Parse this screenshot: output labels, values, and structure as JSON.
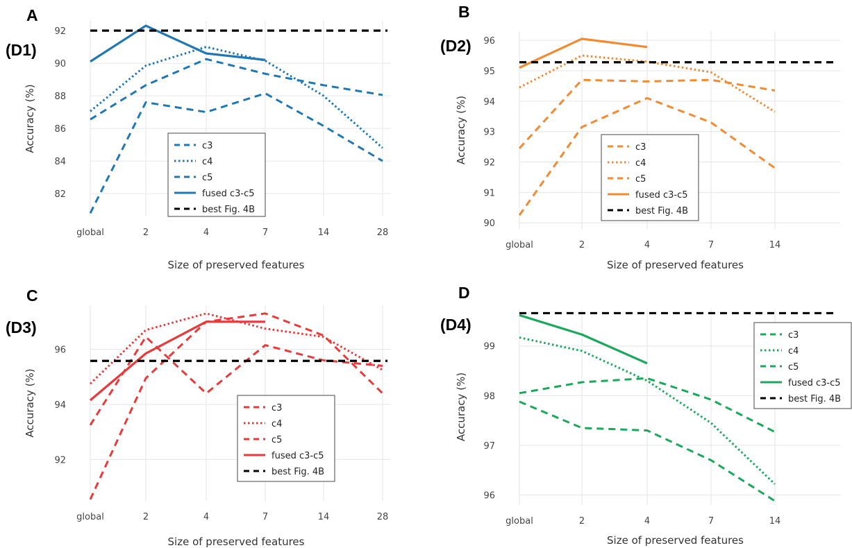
{
  "chart_data": [
    {
      "type": "line",
      "panel": "A",
      "dataset_label": "(D1)",
      "color": "#1f77b4",
      "xlabel": "Size of preserved features",
      "ylabel": "Accuracy (%)",
      "categories": [
        "global",
        "2",
        "4",
        "7",
        "14",
        "28"
      ],
      "yticks": [
        82,
        84,
        86,
        88,
        90,
        92
      ],
      "ylim": [
        80.6,
        92.6
      ],
      "grid": true,
      "legend_position": "center",
      "series": [
        {
          "name": "c3",
          "style": "dashed",
          "values": [
            86.55,
            88.65,
            90.25,
            89.35,
            88.65,
            88.05
          ]
        },
        {
          "name": "c4",
          "style": "dotted",
          "values": [
            87.05,
            89.85,
            91.0,
            90.15,
            88.0,
            84.8
          ]
        },
        {
          "name": "c5",
          "style": "dashed",
          "values": [
            80.8,
            87.6,
            87.0,
            88.15,
            86.15,
            84.0
          ]
        },
        {
          "name": "fused c3-c5",
          "style": "solid",
          "values": [
            90.1,
            92.3,
            90.6,
            90.2,
            null,
            null
          ]
        },
        {
          "name": "best Fig. 4B",
          "style": "dashed-black",
          "reference": 92.0
        }
      ]
    },
    {
      "type": "line",
      "panel": "B",
      "dataset_label": "(D2)",
      "color": "#f28a32",
      "xlabel": "Size of preserved features",
      "ylabel": "Accuracy (%)",
      "categories": [
        "global",
        "2",
        "4",
        "7",
        "14"
      ],
      "yticks": [
        90,
        91,
        92,
        93,
        94,
        95,
        96
      ],
      "ylim": [
        89.8,
        96.3
      ],
      "grid": true,
      "legend_position": "bottom-center",
      "series": [
        {
          "name": "c3",
          "style": "dashed",
          "values": [
            92.45,
            94.7,
            94.65,
            94.7,
            94.35
          ]
        },
        {
          "name": "c4",
          "style": "dotted",
          "values": [
            94.45,
            95.5,
            95.3,
            94.95,
            93.65
          ]
        },
        {
          "name": "c5",
          "style": "dashed",
          "values": [
            90.25,
            93.15,
            94.1,
            93.3,
            91.8
          ]
        },
        {
          "name": "fused c3-c5",
          "style": "solid",
          "values": [
            95.1,
            96.05,
            95.78,
            null,
            null
          ]
        },
        {
          "name": "best Fig. 4B",
          "style": "dashed-black",
          "reference": 95.28
        }
      ]
    },
    {
      "type": "line",
      "panel": "C",
      "dataset_label": "(D3)",
      "color": "#e83a3a",
      "xlabel": "Size of preserved features",
      "ylabel": "Accuracy (%)",
      "categories": [
        "global",
        "2",
        "4",
        "7",
        "14",
        "28"
      ],
      "yticks": [
        92,
        94,
        96
      ],
      "ylim": [
        90.5,
        97.6
      ],
      "grid": true,
      "legend_position": "bottom-right",
      "series": [
        {
          "name": "c3",
          "style": "dashed",
          "values": [
            93.25,
            96.45,
            94.4,
            96.15,
            95.6,
            95.4
          ]
        },
        {
          "name": "c4",
          "style": "dotted",
          "values": [
            94.75,
            96.7,
            97.3,
            96.75,
            96.45,
            95.25
          ]
        },
        {
          "name": "c5",
          "style": "dashed",
          "values": [
            90.55,
            94.95,
            97.0,
            97.3,
            96.5,
            94.4
          ]
        },
        {
          "name": "fused c3-c5",
          "style": "solid",
          "values": [
            94.15,
            95.85,
            97.0,
            97.0,
            null,
            null
          ]
        },
        {
          "name": "best Fig. 4B",
          "style": "dashed-black",
          "reference": 95.58
        }
      ]
    },
    {
      "type": "line",
      "panel": "D",
      "dataset_label": "(D4)",
      "color": "#1aa85a",
      "xlabel": "Size of preserved features",
      "ylabel": "Accuracy (%)",
      "categories": [
        "global",
        "2",
        "4",
        "7",
        "14"
      ],
      "yticks": [
        96,
        97,
        98,
        99
      ],
      "ylim": [
        95.8,
        99.75
      ],
      "grid": true,
      "legend_position": "top-right",
      "series": [
        {
          "name": "c3",
          "style": "dashed",
          "values": [
            98.05,
            98.27,
            98.35,
            97.92,
            97.27
          ]
        },
        {
          "name": "c4",
          "style": "dotted",
          "values": [
            99.17,
            98.9,
            98.3,
            97.45,
            96.22
          ]
        },
        {
          "name": "c5",
          "style": "dashed",
          "values": [
            97.88,
            97.35,
            97.3,
            96.7,
            95.88
          ]
        },
        {
          "name": "fused c3-c5",
          "style": "solid",
          "values": [
            99.62,
            99.23,
            98.65,
            null,
            null
          ]
        },
        {
          "name": "best Fig. 4B",
          "style": "dashed-black",
          "reference": 99.66
        }
      ]
    }
  ]
}
